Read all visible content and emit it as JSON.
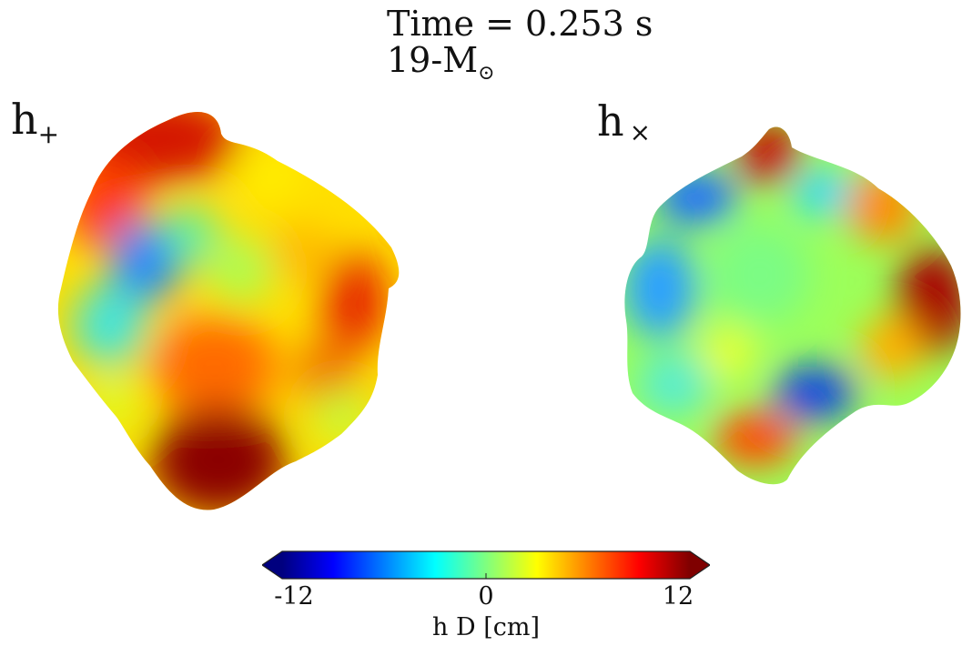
{
  "title": {
    "time_text": "Time = 0.253 s",
    "mass_prefix": "19-M",
    "mass_subscript": "⊙"
  },
  "panels": {
    "plus": {
      "base": "h",
      "subscript": "+"
    },
    "cross": {
      "base": "h",
      "subscript": "×"
    }
  },
  "colorbar": {
    "label": "h D [cm]",
    "ticks": [
      "-12",
      "0",
      "12"
    ],
    "min": -12,
    "max": 12,
    "colormap": "jet",
    "colors": [
      "#00007f",
      "#0000ff",
      "#007fff",
      "#00ffff",
      "#7fff7f",
      "#ffff00",
      "#ff7f00",
      "#ff0000",
      "#7f0000"
    ]
  }
}
